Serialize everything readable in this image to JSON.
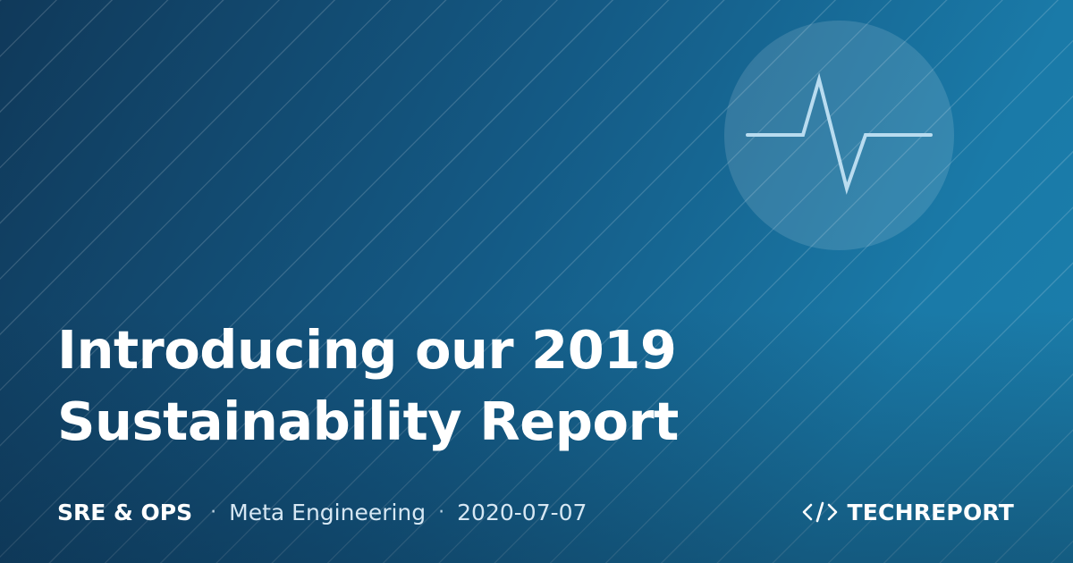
{
  "article": {
    "title_lines": [
      "Introducing our 2019",
      "Sustainability Report"
    ],
    "category": "SRE & OPS",
    "author": "Meta Engineering",
    "date": "2020-07-07",
    "separator": "·"
  },
  "brand": {
    "glyph": "</>",
    "name": "TECHREPORT"
  },
  "decoration": {
    "badge_icon": "heartbeat-pulse-icon",
    "brand_icon": "code-brackets-icon"
  },
  "colors": {
    "background_start": "#10395a",
    "background_end": "#1b7eab",
    "pulse_line": "#b9dcf0",
    "text_primary": "#ffffff",
    "text_secondary": "#d6e7f3"
  }
}
